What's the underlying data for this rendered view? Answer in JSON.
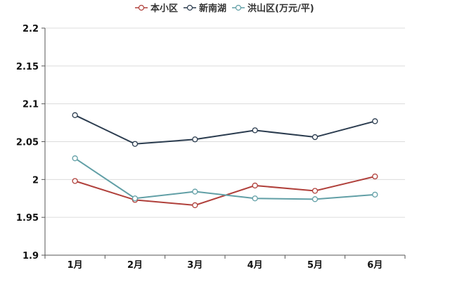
{
  "chart_data": {
    "type": "line",
    "categories": [
      "1月",
      "2月",
      "3月",
      "4月",
      "5月",
      "6月"
    ],
    "series": [
      {
        "name": "本小区",
        "color": "#b0403b",
        "values": [
          1.998,
          1.973,
          1.966,
          1.992,
          1.985,
          2.004
        ]
      },
      {
        "name": "新南湖",
        "color": "#2b3c4f",
        "values": [
          2.085,
          2.047,
          2.053,
          2.065,
          2.056,
          2.077
        ]
      },
      {
        "name": "洪山区(万元/平)",
        "color": "#619fa6",
        "values": [
          2.028,
          1.975,
          1.984,
          1.975,
          1.974,
          1.98
        ]
      }
    ],
    "ylim": [
      1.9,
      2.2
    ],
    "yticks": [
      "1.9",
      "1.95",
      "2",
      "2.05",
      "2.1",
      "2.15",
      "2.2"
    ],
    "grid": true,
    "legend_position": "top-center",
    "title": "",
    "xlabel": "",
    "ylabel": ""
  }
}
